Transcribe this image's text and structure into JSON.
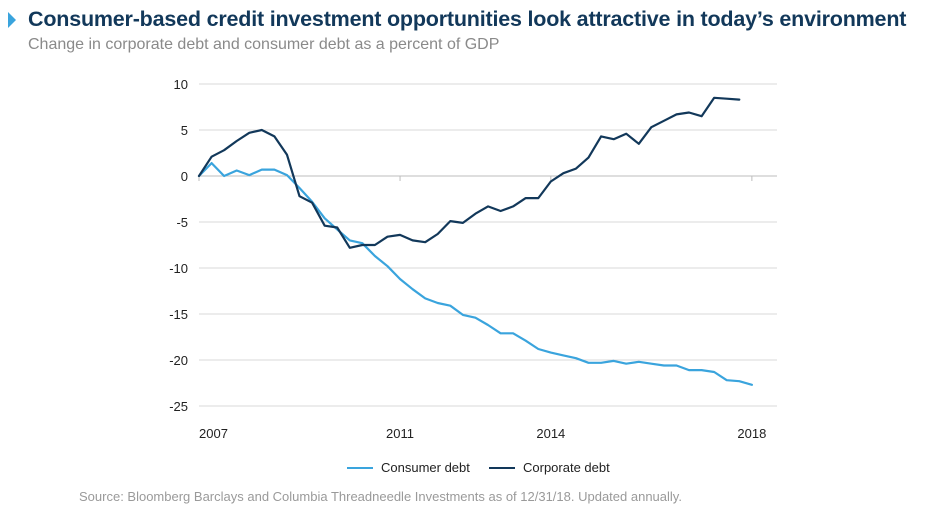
{
  "header": {
    "title": "Consumer-based credit investment opportunities look attractive in today’s environment",
    "subtitle": "Change in corporate debt and consumer debt as a percent of GDP"
  },
  "source": "Source: Bloomberg Barclays and Columbia Threadneedle Investments as of 12/31/18. Updated annually.",
  "colors": {
    "consumer": "#3aa4dd",
    "corporate": "#12385a",
    "grid": "#d9d9d9",
    "axis": "#bdbdbd",
    "title": "#12385a"
  },
  "chart_data": {
    "type": "line",
    "title": "",
    "xlabel": "",
    "ylabel": "",
    "xlim": [
      2007.0,
      2018.5
    ],
    "ylim": [
      -25,
      10
    ],
    "yticks": [
      10,
      5,
      0,
      -5,
      -10,
      -15,
      -20,
      -25
    ],
    "xticks": [
      2007,
      2011,
      2014,
      2018
    ],
    "grid": true,
    "legend_position": "bottom",
    "x": [
      2007.0,
      2007.25,
      2007.5,
      2007.75,
      2008.0,
      2008.25,
      2008.5,
      2008.75,
      2009.0,
      2009.25,
      2009.5,
      2009.75,
      2010.0,
      2010.25,
      2010.5,
      2010.75,
      2011.0,
      2011.25,
      2011.5,
      2011.75,
      2012.0,
      2012.25,
      2012.5,
      2012.75,
      2013.0,
      2013.25,
      2013.5,
      2013.75,
      2014.0,
      2014.25,
      2014.5,
      2014.75,
      2015.0,
      2015.25,
      2015.5,
      2015.75,
      2016.0,
      2016.25,
      2016.5,
      2016.75,
      2017.0,
      2017.25,
      2017.5,
      2017.75,
      2018.0,
      2018.25,
      2018.5
    ],
    "series": [
      {
        "name": "Consumer debt",
        "color": "#3aa4dd",
        "values": [
          0.0,
          1.4,
          0.0,
          0.6,
          0.1,
          0.7,
          0.7,
          0.1,
          -1.3,
          -2.8,
          -4.6,
          -5.8,
          -7.0,
          -7.3,
          -8.7,
          -9.8,
          -11.2,
          -12.3,
          -13.3,
          -13.8,
          -14.1,
          -15.1,
          -15.4,
          -16.2,
          -17.1,
          -17.1,
          -17.9,
          -18.8,
          -19.2,
          -19.5,
          -19.8,
          -20.3,
          -20.3,
          -20.1,
          -20.4,
          -20.2,
          -20.4,
          -20.6,
          -20.6,
          -21.1,
          -21.1,
          -21.3,
          -22.2,
          -22.3,
          -22.7,
          null,
          null
        ],
        "x_override": [
          2007.0,
          2007.25,
          2007.5,
          2007.75,
          2008.0,
          2008.25,
          2008.5,
          2008.75,
          2009.0,
          2009.25,
          2009.5,
          2009.75,
          2010.0,
          2010.25,
          2010.5,
          2010.75,
          2011.0,
          2011.25,
          2011.5,
          2011.75,
          2012.0,
          2012.25,
          2012.5,
          2012.75,
          2013.0,
          2013.25,
          2013.5,
          2013.75,
          2014.0,
          2014.25,
          2014.5,
          2014.75,
          2015.0,
          2015.25,
          2015.5,
          2015.75,
          2016.0,
          2016.25,
          2016.5,
          2016.75,
          2017.0,
          2017.25,
          2017.5,
          2017.75,
          2018.0,
          2018.25,
          2018.5
        ]
      },
      {
        "name": "Corporate debt",
        "color": "#12385a",
        "values": [
          0.0,
          2.1,
          2.8,
          3.8,
          4.7,
          5.0,
          4.3,
          2.3,
          -2.2,
          -2.9,
          -5.4,
          -5.6,
          -7.8,
          -7.5,
          -7.5,
          -6.6,
          -6.4,
          -7.0,
          -7.2,
          -6.3,
          -4.9,
          -5.1,
          -4.1,
          -3.3,
          -3.8,
          -3.3,
          -2.4,
          -2.4,
          -0.6,
          0.3,
          0.8,
          2.0,
          4.3,
          4.0,
          4.6,
          3.5,
          5.3,
          6.0,
          6.7,
          6.9,
          6.5,
          8.5,
          8.4,
          8.3,
          null,
          null,
          null
        ]
      }
    ]
  }
}
